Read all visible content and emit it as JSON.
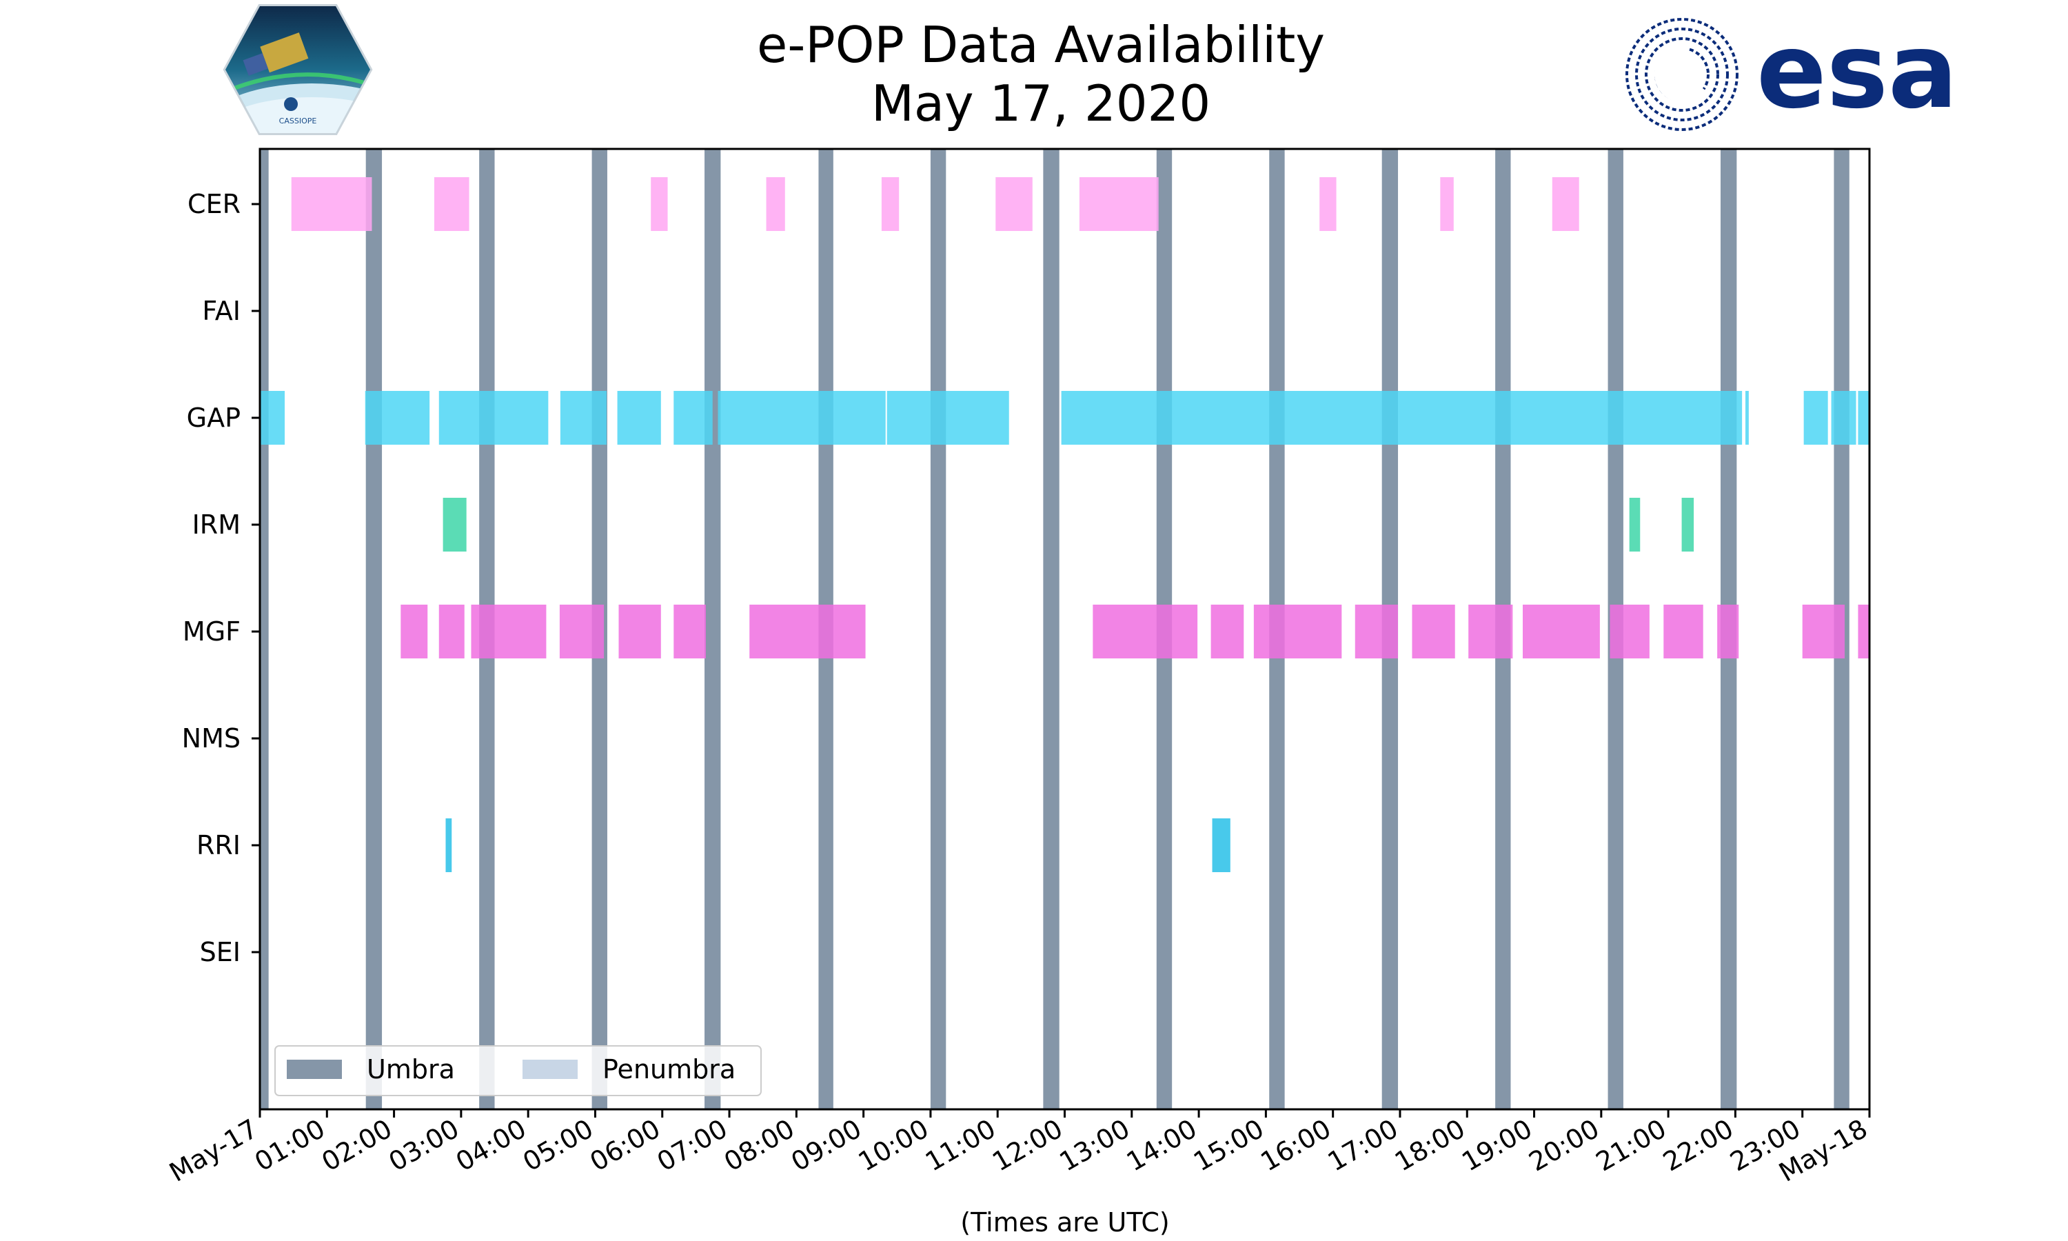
{
  "colors": {
    "umbra": "#8596a8",
    "penumbra": "#c8d6e6",
    "CER": "#ffa6f2",
    "GAP": "#4dd6f5",
    "IRM": "#3ed6a8",
    "MGF": "#f06ee0",
    "RRI": "#28c0e8",
    "esa_blue": "#0b2c7a"
  },
  "logos": {
    "left": {
      "name": "CASSIOPE mission logo",
      "text": "CASSIOPE"
    },
    "right": {
      "name": "ESA logo",
      "text": "esa"
    }
  },
  "chart_data": {
    "type": "timeline",
    "title": "e-POP Data Availability",
    "subtitle": "May 17, 2020",
    "xlabel": "(Times are UTC)",
    "xlim": [
      0,
      24
    ],
    "x_ticks": [
      "May-17",
      "01:00",
      "02:00",
      "03:00",
      "04:00",
      "05:00",
      "06:00",
      "07:00",
      "08:00",
      "09:00",
      "10:00",
      "11:00",
      "12:00",
      "13:00",
      "14:00",
      "15:00",
      "16:00",
      "17:00",
      "18:00",
      "19:00",
      "20:00",
      "21:00",
      "22:00",
      "23:00",
      "May-18"
    ],
    "categories": [
      "CER",
      "FAI",
      "GAP",
      "IRM",
      "MGF",
      "NMS",
      "RRI",
      "SEI"
    ],
    "umbra": [
      [
        0.0,
        0.13
      ],
      [
        1.58,
        1.82
      ],
      [
        3.27,
        3.5
      ],
      [
        4.95,
        5.18
      ],
      [
        6.63,
        6.87
      ],
      [
        8.33,
        8.55
      ],
      [
        10.0,
        10.23
      ],
      [
        11.68,
        11.92
      ],
      [
        13.37,
        13.6
      ],
      [
        15.05,
        15.28
      ],
      [
        16.73,
        16.97
      ],
      [
        18.42,
        18.65
      ],
      [
        20.1,
        20.33
      ],
      [
        21.78,
        22.02
      ],
      [
        23.47,
        23.7
      ]
    ],
    "series": [
      {
        "name": "CER",
        "intervals": [
          [
            0.47,
            1.67
          ],
          [
            2.6,
            3.12
          ],
          [
            5.83,
            6.08
          ],
          [
            7.55,
            7.83
          ],
          [
            9.27,
            9.53
          ],
          [
            10.97,
            11.52
          ],
          [
            12.22,
            13.4
          ],
          [
            15.8,
            16.05
          ],
          [
            17.6,
            17.8
          ],
          [
            19.27,
            19.67
          ]
        ]
      },
      {
        "name": "FAI",
        "intervals": []
      },
      {
        "name": "GAP",
        "intervals": [
          [
            0.0,
            0.37
          ],
          [
            1.57,
            2.53
          ],
          [
            2.67,
            4.3
          ],
          [
            4.48,
            5.17
          ],
          [
            5.33,
            5.98
          ],
          [
            6.17,
            6.75
          ],
          [
            6.83,
            9.33
          ],
          [
            9.35,
            11.17
          ],
          [
            11.95,
            22.1
          ],
          [
            22.15,
            22.2
          ],
          [
            23.02,
            23.38
          ],
          [
            23.43,
            23.8
          ],
          [
            23.83,
            24.0
          ]
        ]
      },
      {
        "name": "IRM",
        "intervals": [
          [
            2.73,
            3.08
          ],
          [
            20.42,
            20.58
          ],
          [
            21.2,
            21.38
          ]
        ]
      },
      {
        "name": "MGF",
        "intervals": [
          [
            2.1,
            2.5
          ],
          [
            2.67,
            3.05
          ],
          [
            3.15,
            4.27
          ],
          [
            4.47,
            5.13
          ],
          [
            5.35,
            5.98
          ],
          [
            6.17,
            6.65
          ],
          [
            7.3,
            9.03
          ],
          [
            12.42,
            13.98
          ],
          [
            14.18,
            14.67
          ],
          [
            14.82,
            16.13
          ],
          [
            16.33,
            16.97
          ],
          [
            17.18,
            17.82
          ],
          [
            18.02,
            18.68
          ],
          [
            18.83,
            19.98
          ],
          [
            20.13,
            20.72
          ],
          [
            20.93,
            21.52
          ],
          [
            21.73,
            22.05
          ],
          [
            23.0,
            23.63
          ],
          [
            23.83,
            24.0
          ]
        ]
      },
      {
        "name": "NMS",
        "intervals": []
      },
      {
        "name": "RRI",
        "intervals": [
          [
            2.77,
            2.86
          ],
          [
            14.2,
            14.47
          ]
        ]
      },
      {
        "name": "SEI",
        "intervals": []
      }
    ],
    "legend": {
      "position": "lower-left",
      "entries": [
        {
          "label": "Umbra",
          "color": "#8596a8"
        },
        {
          "label": "Penumbra",
          "color": "#c8d6e6"
        }
      ]
    }
  }
}
